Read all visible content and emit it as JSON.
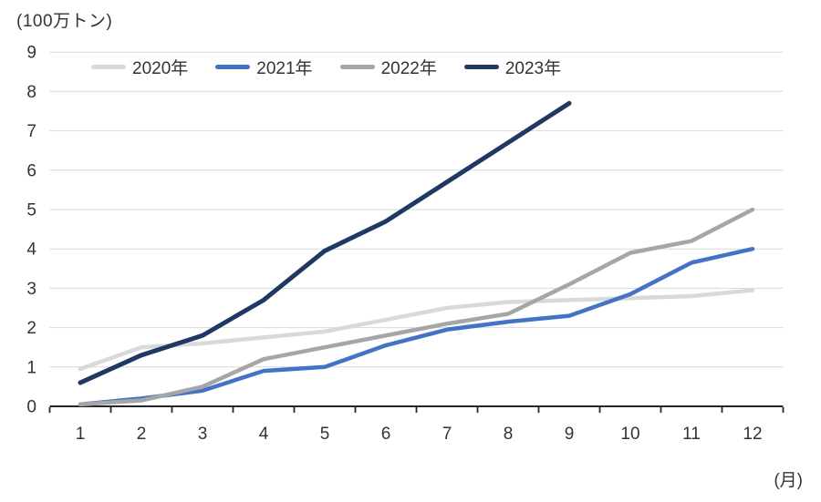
{
  "page": {
    "background": "#ffffff",
    "text_color": "#333333"
  },
  "chart_data": {
    "type": "line",
    "title": "",
    "unit_label": "(100万トン)",
    "xlabel": "(月)",
    "ylabel": "",
    "categories": [
      1,
      2,
      3,
      4,
      5,
      6,
      7,
      8,
      9,
      10,
      11,
      12
    ],
    "ylim": [
      0,
      9
    ],
    "ytick_step": 1,
    "yticks": [
      0,
      1,
      2,
      3,
      4,
      5,
      6,
      7,
      8,
      9
    ],
    "grid": "horizontal",
    "gridline_color": "#d9d9d9",
    "axis_line_color": "#262626",
    "legend_position": "top",
    "legend_labels": [
      "2020年",
      "2021年",
      "2022年",
      "2023年"
    ],
    "series": [
      {
        "name": "2020年",
        "color": "#d9d9d9",
        "values": [
          0.95,
          1.5,
          1.6,
          1.75,
          1.9,
          2.2,
          2.5,
          2.65,
          2.7,
          2.75,
          2.8,
          2.95
        ]
      },
      {
        "name": "2021年",
        "color": "#4472c4",
        "values": [
          0.05,
          0.2,
          0.4,
          0.9,
          1.0,
          1.55,
          1.95,
          2.15,
          2.3,
          2.85,
          3.65,
          4.0
        ]
      },
      {
        "name": "2022年",
        "color": "#a6a6a6",
        "values": [
          0.05,
          0.15,
          0.5,
          1.2,
          1.5,
          1.8,
          2.1,
          2.35,
          3.1,
          3.9,
          4.2,
          5.0
        ]
      },
      {
        "name": "2023年",
        "color": "#1f3864",
        "values": [
          0.6,
          1.3,
          1.8,
          2.7,
          3.95,
          4.7,
          5.7,
          6.7,
          7.7
        ]
      }
    ]
  }
}
